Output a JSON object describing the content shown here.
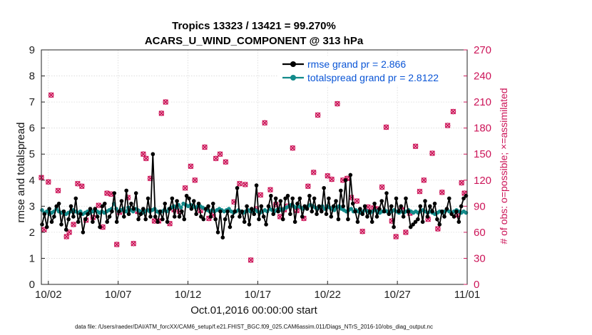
{
  "chart_data": {
    "type": "line",
    "title": "Tropics 13323 / 13421 = 99.270%",
    "subtitle": "ACARS_U_WIND_COMPONENT @ 313 hPa",
    "xlabel": "Oct.01,2016 00:00:00 start",
    "ylabel": "rmse and totalspread",
    "ylabel_right": "# of obs: o=possible; ×=assimilated",
    "xlim": [
      0.5,
      31.0
    ],
    "ylim": [
      0,
      9
    ],
    "ylim_right": [
      0,
      270
    ],
    "x_ticks": [
      1,
      6,
      11,
      16,
      21,
      26,
      31
    ],
    "x_tick_labels": [
      "10/02",
      "10/07",
      "10/12",
      "10/17",
      "10/22",
      "10/27",
      "11/01"
    ],
    "y_ticks": [
      0,
      1,
      2,
      3,
      4,
      5,
      6,
      7,
      8,
      9
    ],
    "y_right_ticks": [
      0,
      30,
      60,
      90,
      120,
      150,
      180,
      210,
      240,
      270
    ],
    "legend_position": "top-right",
    "colors": {
      "rmse": "#000000",
      "spread": "#128a8a",
      "obs": "#cc1458"
    },
    "series": [
      {
        "name": "rmse",
        "legend": "rmse grand pr = 2.866",
        "values": [
          2.3,
          2.7,
          2.2,
          2.9,
          2.4,
          2.6,
          3.0,
          3.1,
          2.3,
          2.8,
          2.1,
          2.5,
          3.0,
          2.6,
          3.3,
          2.4,
          2.7,
          2.0,
          2.5,
          2.7,
          2.9,
          2.4,
          2.9,
          2.6,
          2.2,
          3.0,
          3.1,
          2.4,
          2.6,
          2.8,
          3.5,
          2.4,
          2.8,
          3.2,
          2.6,
          3.6,
          2.7,
          3.1,
          2.9,
          3.5,
          2.5,
          2.7,
          2.9,
          2.5,
          3.3,
          2.6,
          5.0,
          2.6,
          2.4,
          2.8,
          2.5,
          3.1,
          2.4,
          2.9,
          3.3,
          2.6,
          3.2,
          2.6,
          2.8,
          2.5,
          3.4,
          3.3,
          2.9,
          3.2,
          2.7,
          3.1,
          2.6,
          2.5,
          2.9,
          3.0,
          2.6,
          3.1,
          2.5,
          2.0,
          2.8,
          1.8,
          2.5,
          2.8,
          2.2,
          2.6,
          2.8,
          3.7,
          2.6,
          2.8,
          2.4,
          3.0,
          2.3,
          2.9,
          2.7,
          3.8,
          2.5,
          3.0,
          2.6,
          2.3,
          3.0,
          3.4,
          2.7,
          3.3,
          2.8,
          3.2,
          2.5,
          3.3,
          3.4,
          2.7,
          3.3,
          2.4,
          3.1,
          3.3,
          2.6,
          3.0,
          2.9,
          3.4,
          2.8,
          3.3,
          2.7,
          3.0,
          2.8,
          3.7,
          2.7,
          3.3,
          2.6,
          3.0,
          3.2,
          2.5,
          3.6,
          3.0,
          4.0,
          2.5,
          4.2,
          3.1,
          2.8,
          2.4,
          2.9,
          2.7,
          3.0,
          2.6,
          2.8,
          2.4,
          3.1,
          2.6,
          2.9,
          3.2,
          2.8,
          3.5,
          2.7,
          3.0,
          2.2,
          3.3,
          2.8,
          3.0,
          2.6,
          3.3,
          2.8,
          2.2,
          2.3,
          2.4,
          2.5,
          3.0,
          2.4,
          3.2,
          2.6,
          3.0,
          2.8,
          3.1,
          2.5,
          2.3,
          2.8,
          2.6,
          2.9,
          3.3,
          2.7,
          2.6,
          2.8,
          2.4,
          3.0,
          3.3,
          3.4
        ]
      },
      {
        "name": "totalspread",
        "legend": "totalspread grand pr = 2.8122",
        "values": [
          2.85,
          2.75,
          2.8,
          2.7,
          2.75,
          2.8,
          2.9,
          2.8,
          2.75,
          2.8,
          2.7,
          2.75,
          2.8,
          2.85,
          2.8,
          2.75,
          2.8,
          2.7,
          2.75,
          2.8,
          2.75,
          2.8,
          2.85,
          2.8,
          2.75,
          2.8,
          2.75,
          2.8,
          2.85,
          2.9,
          3.1,
          2.9,
          2.8,
          2.85,
          2.9,
          2.8,
          2.95,
          2.85,
          2.8,
          2.9,
          2.85,
          2.8,
          2.75,
          2.8,
          2.85,
          2.8,
          2.85,
          2.9,
          2.8,
          2.75,
          2.8,
          2.85,
          2.8,
          2.9,
          2.95,
          3.0,
          2.95,
          3.05,
          2.95,
          3.1,
          3.05,
          3.0,
          3.05,
          3.0,
          2.95,
          3.0,
          3.0,
          2.95,
          2.9,
          2.85,
          2.8,
          2.85,
          2.8,
          2.85,
          2.9,
          2.85,
          2.8,
          2.85,
          2.9,
          2.8,
          2.75,
          2.8,
          2.85,
          2.8,
          2.75,
          2.8,
          2.85,
          2.8,
          2.8,
          2.85,
          2.8,
          2.75,
          2.8,
          2.85,
          2.8,
          2.9,
          2.85,
          2.8,
          2.85,
          2.9,
          2.85,
          2.9,
          2.95,
          3.0,
          3.05,
          3.0,
          2.95,
          3.0,
          2.95,
          2.9,
          2.95,
          3.0,
          3.05,
          3.0,
          2.95,
          2.9,
          2.95,
          3.0,
          2.9,
          3.0,
          2.95,
          2.9,
          2.85,
          2.95,
          3.0,
          2.9,
          2.85,
          2.8,
          2.85,
          2.9,
          2.8,
          2.85,
          2.8,
          2.75,
          2.8,
          2.85,
          2.8,
          2.75,
          2.8,
          2.85,
          2.8,
          2.75,
          2.8,
          2.85,
          2.8,
          2.75,
          2.8,
          2.85,
          2.8,
          2.75,
          2.8,
          2.75,
          2.8,
          2.85,
          2.8,
          2.75,
          2.8,
          2.75,
          2.8,
          2.85,
          2.8,
          2.75,
          2.8,
          2.75,
          2.7,
          2.75,
          2.8,
          2.75,
          2.8,
          2.85,
          2.8,
          2.75,
          2.8,
          2.85,
          2.8,
          2.75,
          2.8,
          2.75
        ]
      },
      {
        "name": "obs",
        "axis": "right",
        "points": [
          [
            0.5,
            123
          ],
          [
            0.7,
            63
          ],
          [
            1.0,
            118
          ],
          [
            1.2,
            218
          ],
          [
            1.7,
            108
          ],
          [
            2.3,
            55
          ],
          [
            2.5,
            60
          ],
          [
            2.8,
            69
          ],
          [
            3.1,
            116
          ],
          [
            3.4,
            113
          ],
          [
            3.7,
            74
          ],
          [
            4.2,
            77
          ],
          [
            4.6,
            91
          ],
          [
            4.9,
            66
          ],
          [
            5.2,
            105
          ],
          [
            5.5,
            104
          ],
          [
            5.9,
            46
          ],
          [
            6.1,
            83
          ],
          [
            6.7,
            100
          ],
          [
            7.1,
            47
          ],
          [
            7.4,
            84
          ],
          [
            7.8,
            150
          ],
          [
            8.0,
            145
          ],
          [
            8.3,
            122
          ],
          [
            8.6,
            73
          ],
          [
            8.9,
            73
          ],
          [
            9.1,
            197
          ],
          [
            9.4,
            210
          ],
          [
            9.7,
            70
          ],
          [
            10.0,
            86
          ],
          [
            10.4,
            84
          ],
          [
            10.8,
            111
          ],
          [
            11.2,
            136
          ],
          [
            11.5,
            120
          ],
          [
            11.9,
            85
          ],
          [
            12.2,
            158
          ],
          [
            12.5,
            76
          ],
          [
            12.8,
            80
          ],
          [
            13.0,
            145
          ],
          [
            13.3,
            150
          ],
          [
            13.7,
            141
          ],
          [
            14.3,
            95
          ],
          [
            14.7,
            116
          ],
          [
            15.1,
            115
          ],
          [
            15.5,
            28
          ],
          [
            15.9,
            87
          ],
          [
            16.2,
            103
          ],
          [
            16.5,
            186
          ],
          [
            16.9,
            109
          ],
          [
            17.3,
            92
          ],
          [
            17.6,
            78
          ],
          [
            17.9,
            86
          ],
          [
            18.1,
            90
          ],
          [
            18.5,
            157
          ],
          [
            18.8,
            85
          ],
          [
            19.3,
            76
          ],
          [
            19.6,
            113
          ],
          [
            20.0,
            129
          ],
          [
            20.3,
            195
          ],
          [
            20.6,
            88
          ],
          [
            21.0,
            125
          ],
          [
            21.3,
            121
          ],
          [
            21.7,
            208
          ],
          [
            22.1,
            120
          ],
          [
            22.4,
            122
          ],
          [
            22.7,
            100
          ],
          [
            23.1,
            96
          ],
          [
            23.5,
            61
          ],
          [
            23.9,
            89
          ],
          [
            24.3,
            88
          ],
          [
            24.6,
            87
          ],
          [
            24.9,
            112
          ],
          [
            25.2,
            181
          ],
          [
            25.6,
            73
          ],
          [
            25.9,
            55
          ],
          [
            26.3,
            86
          ],
          [
            26.6,
            60
          ],
          [
            26.9,
            82
          ],
          [
            27.3,
            159
          ],
          [
            27.6,
            107
          ],
          [
            27.9,
            120
          ],
          [
            28.2,
            75
          ],
          [
            28.5,
            151
          ],
          [
            28.9,
            64
          ],
          [
            29.2,
            106
          ],
          [
            29.6,
            183
          ],
          [
            30.0,
            199
          ],
          [
            30.3,
            80
          ],
          [
            30.6,
            117
          ],
          [
            30.8,
            105
          ]
        ]
      }
    ]
  },
  "footer": {
    "data_file": "data file: /Users/raeder/DAI/ATM_forcXX/CAM6_setup/f.e21.FHIST_BGC.f09_025.CAM6assim.011/Diags_NTrS_2016-10/obs_diag_output.nc"
  }
}
